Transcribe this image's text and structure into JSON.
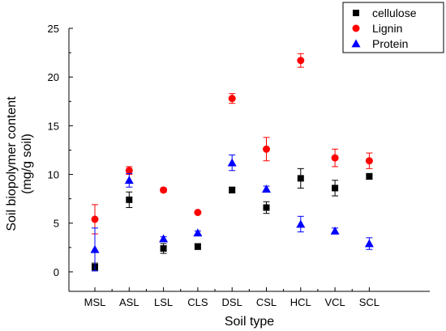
{
  "chart_data": {
    "type": "scatter",
    "xlabel": "Soil type",
    "ylabel_lines": [
      "Soil biopolymer content",
      "(mg/g soil)"
    ],
    "categories": [
      "MSL",
      "ASL",
      "LSL",
      "CLS",
      "DSL",
      "CSL",
      "HCL",
      "VCL",
      "SCL"
    ],
    "ylim": [
      -2,
      25
    ],
    "yticks": [
      0,
      5,
      10,
      15,
      20,
      25
    ],
    "legend_position": "top-right",
    "grid": false,
    "series": [
      {
        "name": "cellulose",
        "marker": "square",
        "color": "#000000",
        "values": [
          0.5,
          7.4,
          2.4,
          2.6,
          8.4,
          6.6,
          9.6,
          8.6,
          9.8
        ],
        "errors": [
          0.4,
          0.8,
          0.5,
          0.3,
          0.3,
          0.6,
          1.0,
          0.8,
          0.3
        ]
      },
      {
        "name": "Lignin",
        "marker": "circle",
        "color": "#ff0000",
        "values": [
          5.4,
          10.4,
          8.4,
          6.1,
          17.8,
          12.6,
          21.7,
          11.7,
          11.4
        ],
        "errors": [
          1.5,
          0.4,
          0.2,
          0.1,
          0.5,
          1.2,
          0.7,
          0.9,
          0.8
        ]
      },
      {
        "name": "Protein",
        "marker": "triangle",
        "color": "#0000ff",
        "values": [
          2.3,
          9.4,
          3.4,
          4.0,
          11.2,
          8.5,
          4.9,
          4.2,
          2.9
        ],
        "errors": [
          2.2,
          0.7,
          0.2,
          0.2,
          0.8,
          0.3,
          0.8,
          0.3,
          0.6
        ]
      }
    ]
  }
}
